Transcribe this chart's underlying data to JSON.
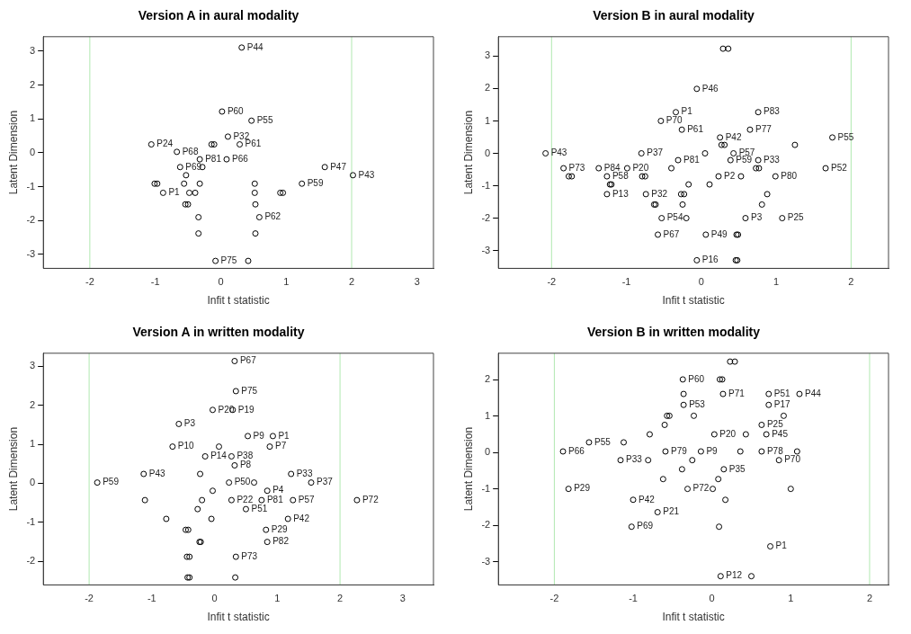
{
  "chart_data": [
    {
      "type": "scatter",
      "title": "Version A in aural modality",
      "xlabel": "Infit t statistic",
      "ylabel": "Latent Dimension",
      "xlim": [
        -2.71,
        3.25
      ],
      "ylim": [
        -3.41,
        3.43
      ],
      "xticks": [
        -2,
        -1,
        0,
        1,
        2,
        3
      ],
      "yticks": [
        -3,
        -2,
        -1,
        0,
        1,
        2,
        3
      ],
      "grid": false,
      "legend": false,
      "marker": "circle",
      "series": [
        {
          "color": "#000000",
          "x": [
            0.32,
            0.02,
            0.47,
            0.11,
            -1.06,
            -0.14,
            -0.1,
            0.29,
            -0.67,
            -0.32,
            0.09,
            -0.62,
            -0.28,
            1.59,
            2.02,
            -0.53,
            -1.01,
            -0.97,
            -0.56,
            -0.32,
            0.52,
            1.24,
            -0.88,
            -0.48,
            -0.39,
            0.52,
            0.91,
            0.95,
            -0.54,
            -0.5,
            0.53,
            -0.34,
            0.59,
            -0.34,
            0.53,
            -0.08,
            0.42
          ],
          "values": [
            3.11,
            1.22,
            0.95,
            0.48,
            0.25,
            0.25,
            0.25,
            0.25,
            0.03,
            -0.19,
            -0.19,
            -0.42,
            -0.42,
            -0.42,
            -0.66,
            -0.66,
            -0.91,
            -0.91,
            -0.91,
            -0.91,
            -0.91,
            -0.91,
            -1.18,
            -1.18,
            -1.18,
            -1.18,
            -1.18,
            -1.18,
            -1.52,
            -1.52,
            -1.52,
            -1.9,
            -1.9,
            -2.38,
            -2.38,
            -3.19,
            -3.19
          ]
        }
      ],
      "ref_lines": [
        {
          "axis": "x",
          "value": -2,
          "color": "#b0e8b0"
        },
        {
          "axis": "x",
          "value": 2,
          "color": "#b0e8b0"
        }
      ],
      "annotations": [
        {
          "text": "P44",
          "x": 0.32,
          "y": 3.11
        },
        {
          "text": "P60",
          "x": 0.02,
          "y": 1.22
        },
        {
          "text": "P55",
          "x": 0.47,
          "y": 0.95
        },
        {
          "text": "P32",
          "x": 0.11,
          "y": 0.48
        },
        {
          "text": "P24",
          "x": -1.06,
          "y": 0.25
        },
        {
          "text": "P61",
          "x": 0.29,
          "y": 0.25
        },
        {
          "text": "P68",
          "x": -0.67,
          "y": 0.03
        },
        {
          "text": "P81",
          "x": -0.32,
          "y": -0.19
        },
        {
          "text": "P66",
          "x": 0.09,
          "y": -0.19
        },
        {
          "text": "P69",
          "x": -0.62,
          "y": -0.42
        },
        {
          "text": "P47",
          "x": 1.59,
          "y": -0.42
        },
        {
          "text": "P43",
          "x": 2.02,
          "y": -0.66
        },
        {
          "text": "P59",
          "x": 1.24,
          "y": -0.91
        },
        {
          "text": "P1",
          "x": -0.88,
          "y": -1.18
        },
        {
          "text": "P62",
          "x": 0.59,
          "y": -1.9
        },
        {
          "text": "P75",
          "x": -0.08,
          "y": -3.19
        }
      ]
    },
    {
      "type": "scatter",
      "title": "Version B in aural modality",
      "xlabel": "Infit t statistic",
      "ylabel": "Latent Dimension",
      "xlim": [
        -2.71,
        2.5
      ],
      "ylim": [
        -3.55,
        3.6
      ],
      "xticks": [
        -2,
        -1,
        0,
        1,
        2
      ],
      "yticks": [
        -3,
        -2,
        -1,
        0,
        1,
        2,
        3
      ],
      "grid": false,
      "legend": false,
      "marker": "circle",
      "series": [
        {
          "color": "#000000",
          "x": [
            0.29,
            0.36,
            -0.06,
            -0.34,
            0.76,
            -0.54,
            -0.26,
            0.65,
            1.75,
            0.25,
            0.27,
            0.31,
            1.25,
            -2.08,
            -0.8,
            0.05,
            0.43,
            -0.31,
            0.39,
            0.76,
            -1.84,
            -1.37,
            -0.99,
            -0.4,
            1.66,
            0.73,
            0.77,
            -1.77,
            -1.73,
            -1.26,
            -0.79,
            -0.75,
            0.23,
            0.53,
            0.99,
            -1.22,
            -1.2,
            -0.17,
            0.11,
            -1.26,
            -0.74,
            -0.27,
            -0.23,
            0.88,
            -0.63,
            -0.61,
            -0.25,
            0.81,
            -0.53,
            -0.2,
            0.59,
            1.08,
            -0.58,
            0.06,
            0.47,
            0.49,
            -0.06,
            0.46,
            0.48
          ],
          "values": [
            3.23,
            3.23,
            1.99,
            1.27,
            1.27,
            1.0,
            0.73,
            0.73,
            0.49,
            0.49,
            0.26,
            0.26,
            0.26,
            0,
            0,
            0,
            0,
            -0.21,
            -0.21,
            -0.21,
            -0.46,
            -0.46,
            -0.46,
            -0.46,
            -0.46,
            -0.46,
            -0.46,
            -0.71,
            -0.71,
            -0.71,
            -0.71,
            -0.71,
            -0.71,
            -0.71,
            -0.71,
            -0.96,
            -0.96,
            -0.96,
            -0.96,
            -1.26,
            -1.26,
            -1.26,
            -1.26,
            -1.26,
            -1.58,
            -1.58,
            -1.58,
            -1.58,
            -2.0,
            -2.0,
            -2.0,
            -2.0,
            -2.51,
            -2.51,
            -2.51,
            -2.51,
            -3.3,
            -3.3,
            -3.3
          ]
        }
      ],
      "ref_lines": [
        {
          "axis": "x",
          "value": -2,
          "color": "#b0e8b0"
        },
        {
          "axis": "x",
          "value": 2,
          "color": "#b0e8b0"
        }
      ],
      "annotations": [
        {
          "text": "P46",
          "x": -0.06,
          "y": 1.99
        },
        {
          "text": "P1",
          "x": -0.34,
          "y": 1.27
        },
        {
          "text": "P83",
          "x": 0.76,
          "y": 1.27
        },
        {
          "text": "P70",
          "x": -0.54,
          "y": 1.0
        },
        {
          "text": "P61",
          "x": -0.26,
          "y": 0.73
        },
        {
          "text": "P77",
          "x": 0.65,
          "y": 0.73
        },
        {
          "text": "P55",
          "x": 1.75,
          "y": 0.49
        },
        {
          "text": "P42",
          "x": 0.25,
          "y": 0.49
        },
        {
          "text": "P43",
          "x": -2.08,
          "y": 0
        },
        {
          "text": "P37",
          "x": -0.8,
          "y": 0
        },
        {
          "text": "P57",
          "x": 0.43,
          "y": 0
        },
        {
          "text": "P81",
          "x": -0.31,
          "y": -0.21
        },
        {
          "text": "P59",
          "x": 0.39,
          "y": -0.21
        },
        {
          "text": "P33",
          "x": 0.76,
          "y": -0.21
        },
        {
          "text": "P73",
          "x": -1.84,
          "y": -0.46
        },
        {
          "text": "P84",
          "x": -1.37,
          "y": -0.46
        },
        {
          "text": "P20",
          "x": -0.99,
          "y": -0.46
        },
        {
          "text": "P52",
          "x": 1.66,
          "y": -0.46
        },
        {
          "text": "P58",
          "x": -1.26,
          "y": -0.71
        },
        {
          "text": "P2",
          "x": 0.23,
          "y": -0.71
        },
        {
          "text": "P80",
          "x": 0.99,
          "y": -0.71
        },
        {
          "text": "P13",
          "x": -1.26,
          "y": -1.26
        },
        {
          "text": "P32",
          "x": -0.74,
          "y": -1.26
        },
        {
          "text": "P54",
          "x": -0.53,
          "y": -2.0
        },
        {
          "text": "P3",
          "x": 0.59,
          "y": -2.0
        },
        {
          "text": "P25",
          "x": 1.08,
          "y": -2.0
        },
        {
          "text": "P67",
          "x": -0.58,
          "y": -2.51
        },
        {
          "text": "P49",
          "x": 0.06,
          "y": -2.51
        },
        {
          "text": "P16",
          "x": -0.06,
          "y": -3.3
        }
      ]
    },
    {
      "type": "scatter",
      "title": "Version A in written modality",
      "xlabel": "Infit t statistic",
      "ylabel": "Latent Dimension",
      "xlim": [
        -2.73,
        3.49
      ],
      "ylim": [
        -2.6,
        3.33
      ],
      "xticks": [
        -2,
        -1,
        0,
        1,
        2,
        3
      ],
      "yticks": [
        -2,
        -1,
        0,
        1,
        2,
        3
      ],
      "grid": false,
      "legend": false,
      "marker": "circle",
      "series": [
        {
          "color": "#000000",
          "x": [
            0.32,
            0.34,
            -0.03,
            0.29,
            -0.57,
            0.53,
            0.93,
            -0.67,
            0.07,
            0.88,
            -0.15,
            0.27,
            0.32,
            -1.13,
            -0.23,
            1.22,
            -1.87,
            0.23,
            0.63,
            1.54,
            -0.03,
            0.84,
            -1.11,
            -0.2,
            0.27,
            0.75,
            1.25,
            2.27,
            -0.27,
            0.5,
            -0.77,
            -0.05,
            1.17,
            -0.46,
            -0.42,
            0.82,
            -0.24,
            -0.22,
            0.84,
            -0.44,
            -0.4,
            0.34,
            -0.43,
            -0.4,
            0.33
          ],
          "values": [
            3.13,
            2.36,
            1.88,
            1.88,
            1.52,
            1.21,
            1.21,
            0.94,
            0.94,
            0.94,
            0.69,
            0.69,
            0.46,
            0.24,
            0.24,
            0.24,
            0.02,
            0.02,
            0.02,
            0.02,
            -0.19,
            -0.19,
            -0.43,
            -0.43,
            -0.43,
            -0.43,
            -0.43,
            -0.43,
            -0.66,
            -0.66,
            -0.91,
            -0.91,
            -0.91,
            -1.19,
            -1.19,
            -1.19,
            -1.5,
            -1.5,
            -1.5,
            -1.88,
            -1.88,
            -1.88,
            -2.41,
            -2.41,
            -2.41
          ]
        }
      ],
      "ref_lines": [
        {
          "axis": "x",
          "value": -2,
          "color": "#b0e8b0"
        },
        {
          "axis": "x",
          "value": 2,
          "color": "#b0e8b0"
        }
      ],
      "annotations": [
        {
          "text": "P67",
          "x": 0.32,
          "y": 3.13
        },
        {
          "text": "P75",
          "x": 0.34,
          "y": 2.36
        },
        {
          "text": "P20",
          "x": -0.03,
          "y": 1.88
        },
        {
          "text": "P19",
          "x": 0.29,
          "y": 1.88
        },
        {
          "text": "P3",
          "x": -0.57,
          "y": 1.52
        },
        {
          "text": "P9",
          "x": 0.53,
          "y": 1.21
        },
        {
          "text": "P1",
          "x": 0.93,
          "y": 1.21
        },
        {
          "text": "P10",
          "x": -0.67,
          "y": 0.94
        },
        {
          "text": "P7",
          "x": 0.88,
          "y": 0.94
        },
        {
          "text": "P14",
          "x": -0.15,
          "y": 0.69
        },
        {
          "text": "P38",
          "x": 0.27,
          "y": 0.69
        },
        {
          "text": "P8",
          "x": 0.32,
          "y": 0.46
        },
        {
          "text": "P43",
          "x": -1.13,
          "y": 0.24
        },
        {
          "text": "P33",
          "x": 1.22,
          "y": 0.24
        },
        {
          "text": "P59",
          "x": -1.87,
          "y": 0.02
        },
        {
          "text": "P50",
          "x": 0.23,
          "y": 0.02
        },
        {
          "text": "P37",
          "x": 1.54,
          "y": 0.02
        },
        {
          "text": "P4",
          "x": 0.84,
          "y": -0.19
        },
        {
          "text": "P22",
          "x": 0.27,
          "y": -0.43
        },
        {
          "text": "P81",
          "x": 0.75,
          "y": -0.43
        },
        {
          "text": "P57",
          "x": 1.25,
          "y": -0.43
        },
        {
          "text": "P72",
          "x": 2.27,
          "y": -0.43
        },
        {
          "text": "P51",
          "x": 0.5,
          "y": -0.66
        },
        {
          "text": "P42",
          "x": 1.17,
          "y": -0.91
        },
        {
          "text": "P29",
          "x": 0.82,
          "y": -1.19
        },
        {
          "text": "P82",
          "x": 0.84,
          "y": -1.5
        },
        {
          "text": "P73",
          "x": 0.34,
          "y": -1.88
        }
      ]
    },
    {
      "type": "scatter",
      "title": "Version B in written modality",
      "xlabel": "Infit t statistic",
      "ylabel": "Latent Dimension",
      "xlim": [
        -2.71,
        2.24
      ],
      "ylim": [
        -3.64,
        2.73
      ],
      "xticks": [
        -2,
        -1,
        0,
        1,
        2
      ],
      "yticks": [
        -3,
        -2,
        -1,
        0,
        1,
        2
      ],
      "grid": false,
      "legend": false,
      "marker": "circle",
      "series": [
        {
          "color": "#000000",
          "x": [
            0.23,
            0.29,
            -0.37,
            0.1,
            0.13,
            -0.36,
            0.14,
            0.72,
            1.11,
            -0.36,
            0.72,
            -0.57,
            -0.54,
            -0.23,
            0.91,
            0.63,
            -0.6,
            -0.79,
            0.03,
            0.43,
            0.69,
            -1.56,
            -1.12,
            -1.89,
            -0.59,
            -0.14,
            0.36,
            0.63,
            1.08,
            -1.16,
            -0.81,
            -0.25,
            0.85,
            -0.38,
            0.15,
            -0.62,
            0.08,
            -1.82,
            -0.31,
            0.01,
            1.0,
            -1.0,
            0.17,
            -0.69,
            -1.02,
            0.09,
            0.74,
            0.11,
            0.5
          ],
          "values": [
            2.5,
            2.5,
            2.01,
            2.01,
            2.01,
            1.61,
            1.61,
            1.61,
            1.61,
            1.31,
            1.31,
            1.01,
            1.01,
            1.01,
            1.01,
            0.76,
            0.76,
            0.5,
            0.5,
            0.5,
            0.5,
            0.28,
            0.28,
            0.03,
            0.03,
            0.03,
            0.03,
            0.03,
            0.03,
            -0.21,
            -0.21,
            -0.21,
            -0.21,
            -0.46,
            -0.46,
            -0.73,
            -0.73,
            -1.0,
            -1.0,
            -1.0,
            -1.0,
            -1.3,
            -1.3,
            -1.64,
            -2.04,
            -2.04,
            -2.58,
            -3.4,
            -3.4
          ]
        }
      ],
      "ref_lines": [
        {
          "axis": "x",
          "value": -2,
          "color": "#b0e8b0"
        },
        {
          "axis": "x",
          "value": 2,
          "color": "#b0e8b0"
        }
      ],
      "annotations": [
        {
          "text": "P60",
          "x": -0.37,
          "y": 2.01
        },
        {
          "text": "P71",
          "x": 0.14,
          "y": 1.61
        },
        {
          "text": "P51",
          "x": 0.72,
          "y": 1.61
        },
        {
          "text": "P44",
          "x": 1.11,
          "y": 1.61
        },
        {
          "text": "P53",
          "x": -0.36,
          "y": 1.31
        },
        {
          "text": "P17",
          "x": 0.72,
          "y": 1.31
        },
        {
          "text": "P25",
          "x": 0.63,
          "y": 0.76
        },
        {
          "text": "P20",
          "x": 0.03,
          "y": 0.5
        },
        {
          "text": "P45",
          "x": 0.69,
          "y": 0.5
        },
        {
          "text": "P55",
          "x": -1.56,
          "y": 0.28
        },
        {
          "text": "P66",
          "x": -1.89,
          "y": 0.03
        },
        {
          "text": "P79",
          "x": -0.59,
          "y": 0.03
        },
        {
          "text": "P9",
          "x": -0.14,
          "y": 0.03
        },
        {
          "text": "P78",
          "x": 0.63,
          "y": 0.03
        },
        {
          "text": "P33",
          "x": -1.16,
          "y": -0.21
        },
        {
          "text": "P70",
          "x": 0.85,
          "y": -0.21
        },
        {
          "text": "P35",
          "x": 0.15,
          "y": -0.46
        },
        {
          "text": "P29",
          "x": -1.82,
          "y": -1.0
        },
        {
          "text": "P72",
          "x": -0.31,
          "y": -1.0
        },
        {
          "text": "P42",
          "x": -1.0,
          "y": -1.3
        },
        {
          "text": "P21",
          "x": -0.69,
          "y": -1.64
        },
        {
          "text": "P69",
          "x": -1.02,
          "y": -2.04
        },
        {
          "text": "P1",
          "x": 0.74,
          "y": -2.58
        },
        {
          "text": "P12",
          "x": 0.11,
          "y": -3.4
        }
      ]
    }
  ]
}
